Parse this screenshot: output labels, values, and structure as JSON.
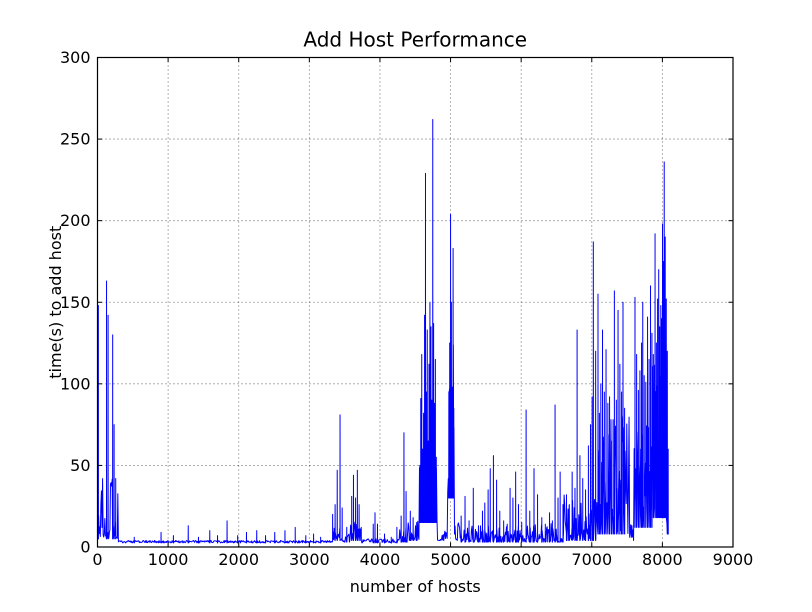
{
  "window": {
    "background": "#ffffff"
  },
  "chart_data": {
    "type": "line",
    "title": "Add Host Performance",
    "xlabel": "number of hosts",
    "ylabel": "time(s) to add host",
    "xlim": [
      0,
      9000
    ],
    "ylim": [
      0,
      300
    ],
    "xticks": [
      0,
      1000,
      2000,
      3000,
      4000,
      5000,
      6000,
      7000,
      8000,
      9000
    ],
    "yticks": [
      0,
      50,
      100,
      150,
      200,
      250,
      300
    ],
    "grid": true,
    "grid_style": "dotted",
    "legend": "none",
    "line_color": "#0000ff",
    "axis_color": "#000000",
    "text_color": "#000000",
    "background": "#ffffff",
    "series_name": "time to add host",
    "baseline": 3,
    "x_end": 8085,
    "sample_step": 8,
    "seed": 20,
    "noise_bands": [
      {
        "x0": 0,
        "x1": 290,
        "lo": 5,
        "hi": 45,
        "p": 2
      },
      {
        "x0": 290,
        "x1": 3330,
        "lo": 2.5,
        "hi": 4,
        "p": 1
      },
      {
        "x0": 3330,
        "x1": 3470,
        "lo": 4,
        "hi": 18,
        "p": 2
      },
      {
        "x0": 3470,
        "x1": 3580,
        "lo": 3,
        "hi": 8,
        "p": 2
      },
      {
        "x0": 3580,
        "x1": 3740,
        "lo": 4,
        "hi": 16,
        "p": 2
      },
      {
        "x0": 3740,
        "x1": 4270,
        "lo": 2.5,
        "hi": 5,
        "p": 1
      },
      {
        "x0": 4270,
        "x1": 4400,
        "lo": 3,
        "hi": 12,
        "p": 2
      },
      {
        "x0": 4400,
        "x1": 4560,
        "lo": 4,
        "hi": 18,
        "p": 2
      },
      {
        "x0": 4560,
        "x1": 4810,
        "lo": 15,
        "hi": 70,
        "p": 1.3
      },
      {
        "x0": 4810,
        "x1": 4960,
        "lo": 4,
        "hi": 10,
        "p": 2
      },
      {
        "x0": 4960,
        "x1": 5050,
        "lo": 30,
        "hi": 130,
        "p": 1
      },
      {
        "x0": 5050,
        "x1": 5120,
        "lo": 4,
        "hi": 15,
        "p": 2
      },
      {
        "x0": 5120,
        "x1": 6060,
        "lo": 3,
        "hi": 13,
        "p": 2
      },
      {
        "x0": 6060,
        "x1": 6600,
        "lo": 3,
        "hi": 15,
        "p": 2
      },
      {
        "x0": 6600,
        "x1": 7080,
        "lo": 4,
        "hi": 32,
        "p": 2
      },
      {
        "x0": 7080,
        "x1": 7530,
        "lo": 8,
        "hi": 85,
        "p": 1.5
      },
      {
        "x0": 7530,
        "x1": 7595,
        "lo": 4,
        "hi": 15,
        "p": 2
      },
      {
        "x0": 7595,
        "x1": 7860,
        "lo": 12,
        "hi": 75,
        "p": 1
      },
      {
        "x0": 7860,
        "x1": 8060,
        "lo": 18,
        "hi": 115,
        "p": 1
      },
      {
        "x0": 8060,
        "x1": 8086,
        "lo": 8,
        "hi": 35,
        "p": 1
      }
    ],
    "spikes": [
      [
        12,
        148
      ],
      [
        128,
        163
      ],
      [
        150,
        142
      ],
      [
        215,
        130
      ],
      [
        235,
        75
      ],
      [
        258,
        42
      ],
      [
        520,
        6
      ],
      [
        900,
        9
      ],
      [
        1075,
        7
      ],
      [
        1285,
        13
      ],
      [
        1430,
        6
      ],
      [
        1590,
        10
      ],
      [
        1700,
        7
      ],
      [
        1835,
        16
      ],
      [
        1985,
        7
      ],
      [
        2110,
        9
      ],
      [
        2255,
        10
      ],
      [
        2380,
        7
      ],
      [
        2510,
        9
      ],
      [
        2655,
        10
      ],
      [
        2800,
        12
      ],
      [
        2950,
        7
      ],
      [
        3060,
        8
      ],
      [
        3160,
        6
      ],
      [
        3330,
        20
      ],
      [
        3365,
        26
      ],
      [
        3395,
        47
      ],
      [
        3435,
        81
      ],
      [
        3465,
        24
      ],
      [
        3530,
        12
      ],
      [
        3600,
        31
      ],
      [
        3625,
        44
      ],
      [
        3655,
        30
      ],
      [
        3680,
        47
      ],
      [
        3705,
        26
      ],
      [
        3735,
        12
      ],
      [
        3905,
        14
      ],
      [
        3930,
        21
      ],
      [
        3965,
        14
      ],
      [
        4065,
        8
      ],
      [
        4160,
        6
      ],
      [
        4240,
        12
      ],
      [
        4300,
        19
      ],
      [
        4340,
        70
      ],
      [
        4370,
        34
      ],
      [
        4430,
        22
      ],
      [
        4470,
        18
      ],
      [
        4520,
        15
      ],
      [
        4565,
        50
      ],
      [
        4578,
        91
      ],
      [
        4592,
        118
      ],
      [
        4605,
        60
      ],
      [
        4618,
        82
      ],
      [
        4632,
        142
      ],
      [
        4645,
        229
      ],
      [
        4658,
        95
      ],
      [
        4670,
        133
      ],
      [
        4682,
        65
      ],
      [
        4695,
        112
      ],
      [
        4708,
        150
      ],
      [
        4722,
        135
      ],
      [
        4735,
        90
      ],
      [
        4748,
        262
      ],
      [
        4760,
        137
      ],
      [
        4772,
        88
      ],
      [
        4785,
        115
      ],
      [
        4798,
        55
      ],
      [
        4975,
        65
      ],
      [
        4988,
        125
      ],
      [
        5000,
        204
      ],
      [
        5012,
        150
      ],
      [
        5024,
        98
      ],
      [
        5036,
        183
      ],
      [
        5046,
        85
      ],
      [
        5150,
        19
      ],
      [
        5205,
        31
      ],
      [
        5262,
        16
      ],
      [
        5322,
        36
      ],
      [
        5395,
        13
      ],
      [
        5452,
        22
      ],
      [
        5485,
        27
      ],
      [
        5532,
        35
      ],
      [
        5562,
        48
      ],
      [
        5607,
        56
      ],
      [
        5652,
        41
      ],
      [
        5697,
        22
      ],
      [
        5752,
        16
      ],
      [
        5802,
        14
      ],
      [
        5843,
        36
      ],
      [
        5883,
        30
      ],
      [
        5922,
        46
      ],
      [
        5962,
        26
      ],
      [
        6008,
        15
      ],
      [
        6070,
        84
      ],
      [
        6122,
        22
      ],
      [
        6182,
        48
      ],
      [
        6232,
        32
      ],
      [
        6292,
        18
      ],
      [
        6342,
        14
      ],
      [
        6402,
        21
      ],
      [
        6442,
        16
      ],
      [
        6480,
        87
      ],
      [
        6522,
        30
      ],
      [
        6552,
        46
      ],
      [
        6592,
        26
      ],
      [
        6642,
        32
      ],
      [
        6682,
        26
      ],
      [
        6722,
        46
      ],
      [
        6762,
        36
      ],
      [
        6792,
        133
      ],
      [
        6832,
        56
      ],
      [
        6872,
        42
      ],
      [
        6912,
        35
      ],
      [
        6952,
        62
      ],
      [
        6982,
        75
      ],
      [
        7005,
        92
      ],
      [
        7022,
        187
      ],
      [
        7055,
        120
      ],
      [
        7088,
        155
      ],
      [
        7108,
        82
      ],
      [
        7128,
        100
      ],
      [
        7152,
        133
      ],
      [
        7178,
        95
      ],
      [
        7202,
        121
      ],
      [
        7228,
        88
      ],
      [
        7252,
        92
      ],
      [
        7278,
        65
      ],
      [
        7302,
        78
      ],
      [
        7320,
        157
      ],
      [
        7348,
        90
      ],
      [
        7372,
        145
      ],
      [
        7398,
        112
      ],
      [
        7422,
        95
      ],
      [
        7442,
        150
      ],
      [
        7465,
        85
      ],
      [
        7612,
        153
      ],
      [
        7635,
        118
      ],
      [
        7660,
        96
      ],
      [
        7682,
        108
      ],
      [
        7705,
        125
      ],
      [
        7722,
        150
      ],
      [
        7742,
        105
      ],
      [
        7765,
        101
      ],
      [
        7790,
        141
      ],
      [
        7812,
        115
      ],
      [
        7832,
        160
      ],
      [
        7852,
        131
      ],
      [
        7872,
        118
      ],
      [
        7896,
        192
      ],
      [
        7915,
        125
      ],
      [
        7932,
        152
      ],
      [
        7948,
        170
      ],
      [
        7962,
        135
      ],
      [
        7978,
        148
      ],
      [
        7992,
        140
      ],
      [
        8002,
        198
      ],
      [
        8014,
        175
      ],
      [
        8026,
        236
      ],
      [
        8040,
        190
      ],
      [
        8055,
        152
      ],
      [
        8070,
        120
      ],
      [
        8082,
        60
      ]
    ]
  }
}
